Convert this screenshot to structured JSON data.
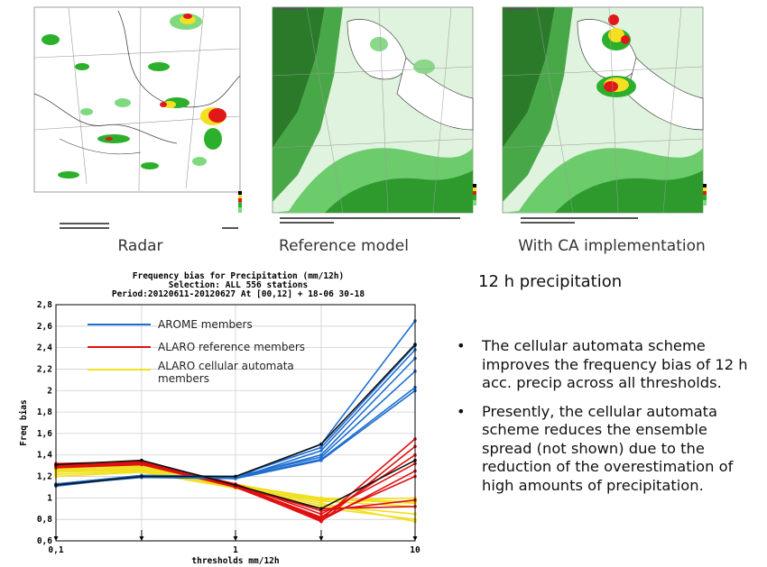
{
  "maps": [
    {
      "caption": "Radar"
    },
    {
      "caption": "Reference model"
    },
    {
      "caption": "With CA implementation"
    }
  ],
  "chart_data": {
    "type": "line",
    "title": "Frequency bias  for Precipitation (mm/12h)",
    "subtitle_1": "Selection: ALL    556 stations",
    "subtitle_2": "Period:20120611-20120627  At [00,12] + 18-06 30-18",
    "xlabel": "thresholds mm/12h",
    "ylabel": "Freq bias",
    "x_scale": "log",
    "x": [
      0.1,
      0.3,
      1,
      3,
      10
    ],
    "x_ticks": [
      "0,1",
      "1",
      "10"
    ],
    "ylim": [
      0.6,
      2.8
    ],
    "y_ticks": [
      "0,6",
      "0,8",
      "1",
      "1,2",
      "1,4",
      "1,6",
      "1,8",
      "2",
      "2,2",
      "2,4",
      "2,6",
      "2,8"
    ],
    "grid": true,
    "legend_position": "top-left",
    "legend": [
      {
        "label": "AROME members",
        "color": "#1f6fd0"
      },
      {
        "label": "ALARO reference members",
        "color": "#e01010"
      },
      {
        "label": "ALARO cellular automata members",
        "color": "#f0e020"
      }
    ],
    "series": [
      {
        "group": "alaro-ca",
        "color": "#f0e020",
        "values": [
          1.24,
          1.26,
          1.12,
          1.0,
          0.96
        ]
      },
      {
        "group": "alaro-ca",
        "color": "#f0e020",
        "values": [
          1.26,
          1.28,
          1.11,
          0.97,
          0.92
        ]
      },
      {
        "group": "alaro-ca",
        "color": "#f0e020",
        "values": [
          1.22,
          1.25,
          1.1,
          0.93,
          0.85
        ]
      },
      {
        "group": "alaro-ca",
        "color": "#f0e020",
        "values": [
          1.28,
          1.29,
          1.12,
          0.99,
          0.95
        ]
      },
      {
        "group": "alaro-ca",
        "color": "#f0e020",
        "values": [
          1.2,
          1.24,
          1.09,
          0.91,
          0.8
        ]
      },
      {
        "group": "alaro-ca",
        "color": "#f0e020",
        "values": [
          1.25,
          1.27,
          1.11,
          0.95,
          0.78
        ]
      },
      {
        "group": "alaro-ca",
        "color": "#f0e020",
        "values": [
          1.27,
          1.3,
          1.13,
          0.98,
          1.0
        ]
      },
      {
        "group": "alaro-ref",
        "color": "#e01010",
        "values": [
          1.3,
          1.33,
          1.12,
          0.8,
          1.55
        ]
      },
      {
        "group": "alaro-ref",
        "color": "#e01010",
        "values": [
          1.31,
          1.34,
          1.11,
          0.78,
          1.48
        ]
      },
      {
        "group": "alaro-ref",
        "color": "#e01010",
        "values": [
          1.29,
          1.32,
          1.12,
          0.82,
          1.4
        ]
      },
      {
        "group": "alaro-ref",
        "color": "#e01010",
        "values": [
          1.32,
          1.34,
          1.13,
          0.85,
          1.32
        ]
      },
      {
        "group": "alaro-ref",
        "color": "#e01010",
        "values": [
          1.3,
          1.33,
          1.1,
          0.79,
          1.25
        ]
      },
      {
        "group": "alaro-ref",
        "color": "#e01010",
        "values": [
          1.31,
          1.33,
          1.11,
          0.81,
          1.2
        ]
      },
      {
        "group": "alaro-ref",
        "color": "#e01010",
        "values": [
          1.3,
          1.32,
          1.12,
          0.88,
          0.98
        ]
      },
      {
        "group": "alaro-ref",
        "color": "#e01010",
        "values": [
          1.28,
          1.31,
          1.1,
          0.9,
          0.92
        ]
      },
      {
        "group": "arome",
        "color": "#1f6fd0",
        "values": [
          1.12,
          1.2,
          1.19,
          1.5,
          2.65
        ]
      },
      {
        "group": "arome",
        "color": "#1f6fd0",
        "values": [
          1.13,
          1.21,
          1.2,
          1.47,
          2.42
        ]
      },
      {
        "group": "arome",
        "color": "#1f6fd0",
        "values": [
          1.12,
          1.19,
          1.18,
          1.44,
          2.38
        ]
      },
      {
        "group": "arome",
        "color": "#1f6fd0",
        "values": [
          1.11,
          1.2,
          1.19,
          1.4,
          2.3
        ]
      },
      {
        "group": "arome",
        "color": "#1f6fd0",
        "values": [
          1.12,
          1.2,
          1.2,
          1.38,
          2.18
        ]
      },
      {
        "group": "arome",
        "color": "#1f6fd0",
        "values": [
          1.13,
          1.21,
          1.19,
          1.36,
          2.03
        ]
      },
      {
        "group": "arome",
        "color": "#1f6fd0",
        "values": [
          1.12,
          1.2,
          1.18,
          1.35,
          2.0
        ]
      },
      {
        "group": "alaro-ref",
        "color": "#111111",
        "values": [
          1.31,
          1.35,
          1.12,
          0.9,
          1.35
        ]
      },
      {
        "group": "arome",
        "color": "#111111",
        "values": [
          1.12,
          1.2,
          1.2,
          1.5,
          2.43
        ]
      }
    ]
  },
  "side_title": "12 h precipitation",
  "bullets": [
    "The cellular automata scheme improves the frequency bias of 12 h acc. precip across all thresholds.",
    "Presently, the cellular automata scheme reduces the ensemble spread (not shown) due to the reduction of the overestimation of high amounts of precipitation."
  ]
}
